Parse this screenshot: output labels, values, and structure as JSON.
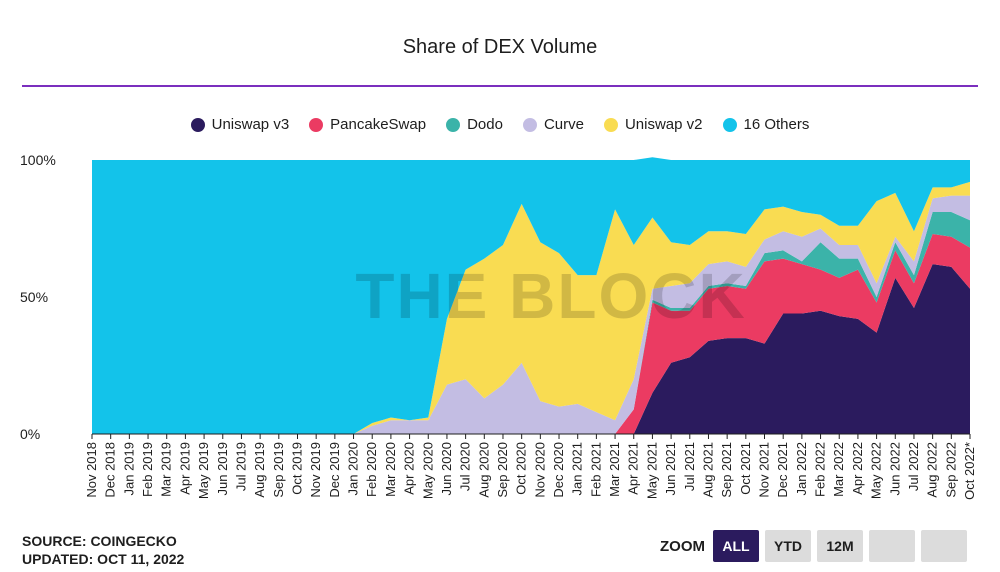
{
  "title": "Share of DEX Volume",
  "watermark": "THE BLOCK",
  "source_line": "SOURCE: COINGECKO",
  "updated_line": "UPDATED: OCT 11, 2022",
  "zoom": {
    "label": "ZOOM",
    "buttons": [
      "ALL",
      "YTD",
      "12M",
      "",
      ""
    ],
    "active": "ALL"
  },
  "colors": {
    "Uniswap v3": "#2b1b5e",
    "PancakeSwap": "#eb3b62",
    "Dodo": "#3bb3a9",
    "Curve": "#c3bde3",
    "Uniswap v2": "#f9dc52",
    "16 Others": "#13c3ea",
    "rule": "#7b2fbe"
  },
  "chart_data": {
    "type": "area",
    "stacked": true,
    "title": "Share of DEX Volume",
    "ylim": [
      0,
      100
    ],
    "yticks": [
      "0%",
      "50%",
      "100%"
    ],
    "legend_position": "top",
    "categories": [
      "Nov 2018",
      "Dec 2018",
      "Jan 2019",
      "Feb 2019",
      "Mar 2019",
      "Apr 2019",
      "May 2019",
      "Jun 2019",
      "Jul 2019",
      "Aug 2019",
      "Sep 2019",
      "Oct 2019",
      "Nov 2019",
      "Dec 2019",
      "Jan 2020",
      "Feb 2020",
      "Mar 2020",
      "Apr 2020",
      "May 2020",
      "Jun 2020",
      "Jul 2020",
      "Aug 2020",
      "Sep 2020",
      "Oct 2020",
      "Nov 2020",
      "Dec 2020",
      "Jan 2021",
      "Feb 2021",
      "Mar 2021",
      "Apr 2021",
      "May 2021",
      "Jun 2021",
      "Jul 2021",
      "Aug 2021",
      "Sep 2021",
      "Oct 2021",
      "Nov 2021",
      "Dec 2021",
      "Jan 2022",
      "Feb 2022",
      "Mar 2022",
      "Apr 2022",
      "May 2022",
      "Jun 2022",
      "Jul 2022",
      "Aug 2022",
      "Sep 2022",
      "Oct 2022*"
    ],
    "series": [
      {
        "name": "Uniswap v3",
        "values": [
          0,
          0,
          0,
          0,
          0,
          0,
          0,
          0,
          0,
          0,
          0,
          0,
          0,
          0,
          0,
          0,
          0,
          0,
          0,
          0,
          0,
          0,
          0,
          0,
          0,
          0,
          0,
          0,
          0,
          0,
          15,
          26,
          28,
          34,
          35,
          35,
          33,
          44,
          44,
          45,
          43,
          42,
          37,
          57,
          46,
          62,
          61,
          53
        ]
      },
      {
        "name": "PancakeSwap",
        "values": [
          0,
          0,
          0,
          0,
          0,
          0,
          0,
          0,
          0,
          0,
          0,
          0,
          0,
          0,
          0,
          0,
          0,
          0,
          0,
          0,
          0,
          0,
          0,
          0,
          0,
          0,
          0,
          0,
          0,
          9,
          33,
          19,
          17,
          19,
          19,
          18,
          30,
          20,
          18,
          15,
          14,
          18,
          11,
          10,
          9,
          11,
          11,
          15
        ]
      },
      {
        "name": "Dodo",
        "values": [
          0,
          0,
          0,
          0,
          0,
          0,
          0,
          0,
          0,
          0,
          0,
          0,
          0,
          0,
          0,
          0,
          0,
          0,
          0,
          0,
          0,
          0,
          0,
          0,
          0,
          0,
          0,
          0,
          0,
          0,
          1,
          1,
          1,
          1,
          1,
          1,
          3,
          3,
          1,
          10,
          7,
          4,
          2,
          3,
          3,
          8,
          9,
          10
        ]
      },
      {
        "name": "Curve",
        "values": [
          0,
          0,
          0,
          0,
          0,
          0,
          0,
          0,
          0,
          0,
          0,
          0,
          0,
          0,
          0,
          3,
          5,
          5,
          5,
          18,
          20,
          13,
          18,
          26,
          12,
          10,
          11,
          8,
          5,
          11,
          4,
          8,
          9,
          8,
          8,
          7,
          5,
          7,
          9,
          5,
          5,
          5,
          5,
          2,
          5,
          5,
          6,
          9
        ]
      },
      {
        "name": "Uniswap v2",
        "values": [
          0,
          0,
          0,
          0,
          0,
          0,
          0,
          0,
          0,
          0,
          0,
          0,
          0,
          0,
          0,
          1,
          1,
          0,
          1,
          24,
          40,
          51,
          51,
          58,
          58,
          56,
          47,
          50,
          77,
          49,
          26,
          16,
          14,
          12,
          11,
          12,
          11,
          9,
          9,
          5,
          7,
          7,
          30,
          16,
          11,
          4,
          3,
          5
        ]
      },
      {
        "name": "16 Others",
        "values": [
          100,
          100,
          100,
          100,
          100,
          100,
          100,
          100,
          100,
          100,
          100,
          100,
          100,
          100,
          100,
          96,
          94,
          95,
          94,
          58,
          40,
          36,
          31,
          16,
          30,
          34,
          42,
          42,
          18,
          31,
          22,
          30,
          31,
          26,
          26,
          27,
          18,
          17,
          19,
          20,
          24,
          24,
          15,
          12,
          26,
          10,
          10,
          8
        ]
      }
    ]
  }
}
